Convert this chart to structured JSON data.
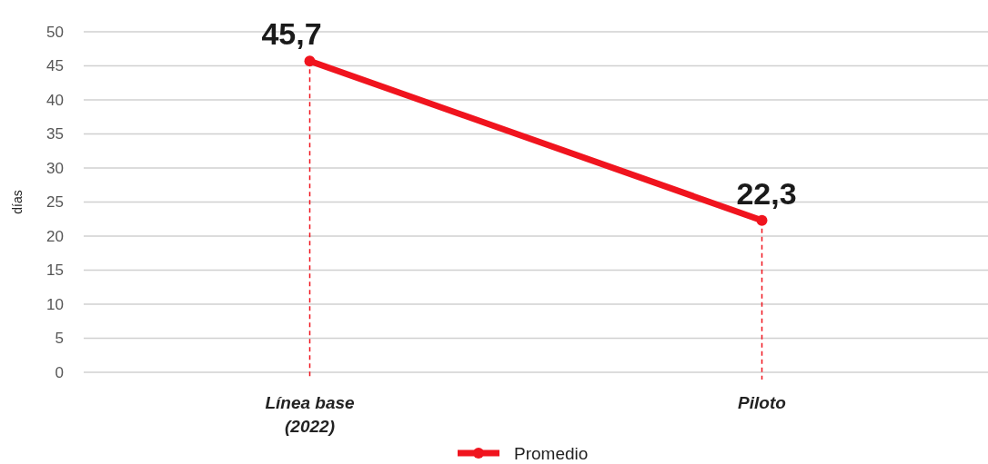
{
  "chart_data": {
    "type": "line",
    "ylabel": "días",
    "categories": [
      "Línea base (2022)",
      "Piloto"
    ],
    "series": [
      {
        "name": "Promedio",
        "color": "#f0141e",
        "values": [
          45.7,
          22.3
        ],
        "value_labels": [
          "45,7",
          "22,3"
        ]
      }
    ],
    "ref_lines": [
      {
        "axis": "x",
        "value": "Línea base (2022)",
        "color": "#f0141e",
        "line_style": "dashed"
      },
      {
        "axis": "x",
        "value": "Piloto",
        "color": "#f0141e",
        "line_style": "dashed"
      }
    ],
    "ylim": [
      0,
      50
    ],
    "yticks": [
      0,
      5,
      10,
      15,
      20,
      25,
      30,
      35,
      40,
      45,
      50
    ],
    "grid": "y",
    "legend": "bottom",
    "marker": "circle",
    "line_style": "solid"
  }
}
